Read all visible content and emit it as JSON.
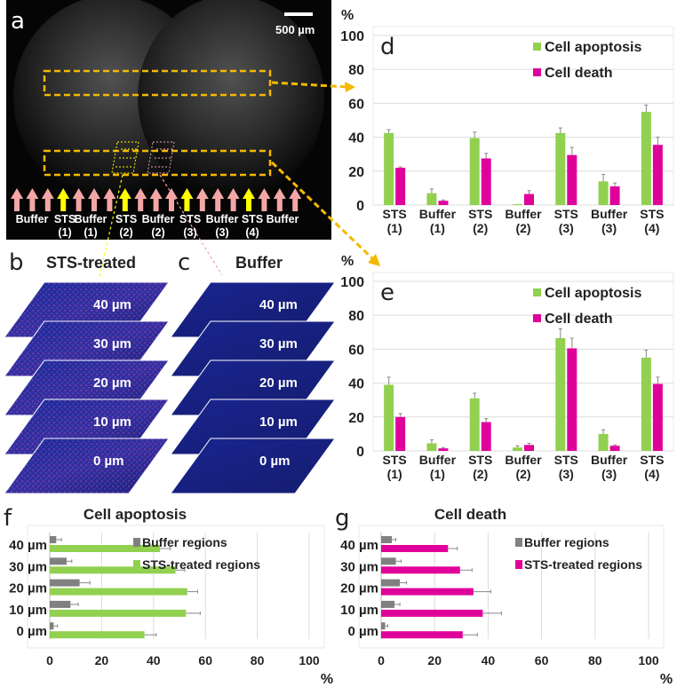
{
  "panels": {
    "a": {
      "letter": "a",
      "scale_bar": "500 µm",
      "arrow_colors": [
        "pink",
        "pink",
        "pink",
        "yellow",
        "pink",
        "pink",
        "pink",
        "yellow",
        "pink",
        "pink",
        "pink",
        "yellow",
        "pink",
        "pink",
        "pink",
        "yellow",
        "pink",
        "pink",
        "pink"
      ],
      "region_labels": [
        {
          "line1": "Buffer",
          "line2": ""
        },
        {
          "line1": "STS",
          "line2": "(1)"
        },
        {
          "line1": "Buffer",
          "line2": "(1)"
        },
        {
          "line1": "STS",
          "line2": "(2)"
        },
        {
          "line1": "Buffer",
          "line2": "(2)"
        },
        {
          "line1": "STS",
          "line2": "(3)"
        },
        {
          "line1": "Buffer",
          "line2": "(3)"
        },
        {
          "line1": "STS",
          "line2": "(4)"
        },
        {
          "line1": "Buffer",
          "line2": ""
        }
      ]
    },
    "b": {
      "letter": "b",
      "title": "STS-treated",
      "layers": [
        "40 µm",
        "30 µm",
        "20 µm",
        "10 µm",
        "0 µm"
      ]
    },
    "c": {
      "letter": "c",
      "title": "Buffer",
      "layers": [
        "40 µm",
        "30 µm",
        "20 µm",
        "10 µm",
        "0 µm"
      ]
    }
  },
  "colors": {
    "apoptosis": "#92d050",
    "death": "#e0009a",
    "buffer": "#808080",
    "pink_arrow": "#f4a6a6",
    "yellow_arrow": "#ffff00",
    "dash": "#f5b800"
  },
  "chart_data": [
    {
      "id": "d",
      "letter": "d",
      "type": "bar",
      "ylabel": "%",
      "ylim": [
        0,
        100
      ],
      "yticks": [
        0,
        20,
        40,
        60,
        80,
        100
      ],
      "grid": true,
      "legend": "top-right",
      "categories": [
        [
          "STS",
          "(1)"
        ],
        [
          "Buffer",
          "(1)"
        ],
        [
          "STS",
          "(2)"
        ],
        [
          "Buffer",
          "(2)"
        ],
        [
          "STS",
          "(3)"
        ],
        [
          "Buffer",
          "(3)"
        ],
        [
          "STS",
          "(4)"
        ]
      ],
      "series": [
        {
          "name": "Cell apoptosis",
          "color": "#92d050",
          "values": [
            42.5,
            7,
            39.5,
            0.5,
            42.5,
            14,
            55
          ],
          "errors": [
            2,
            2.5,
            3.5,
            0,
            3,
            4,
            4
          ]
        },
        {
          "name": "Cell death",
          "color": "#e0009a",
          "values": [
            22,
            2.5,
            27.5,
            6.5,
            29.5,
            11,
            35.5
          ],
          "errors": [
            0.5,
            0.5,
            3,
            2,
            4.5,
            2,
            4.5
          ]
        }
      ]
    },
    {
      "id": "e",
      "letter": "e",
      "type": "bar",
      "ylabel": "%",
      "ylim": [
        0,
        100
      ],
      "yticks": [
        0,
        20,
        40,
        60,
        80,
        100
      ],
      "grid": true,
      "legend": "top-right",
      "categories": [
        [
          "STS",
          "(1)"
        ],
        [
          "Buffer",
          "(1)"
        ],
        [
          "STS",
          "(2)"
        ],
        [
          "Buffer",
          "(2)"
        ],
        [
          "STS",
          "(3)"
        ],
        [
          "Buffer",
          "(3)"
        ],
        [
          "STS",
          "(4)"
        ]
      ],
      "series": [
        {
          "name": "Cell apoptosis",
          "color": "#92d050",
          "values": [
            39,
            4.5,
            31,
            2,
            66.5,
            10,
            55
          ],
          "errors": [
            4.5,
            2,
            3,
            1,
            5.5,
            2.5,
            4.5
          ]
        },
        {
          "name": "Cell death",
          "color": "#e0009a",
          "values": [
            20,
            1.5,
            17,
            3.5,
            60.5,
            3,
            39.5
          ],
          "errors": [
            2,
            0.5,
            2,
            1,
            6,
            0.5,
            4
          ]
        }
      ]
    },
    {
      "id": "f",
      "letter": "f",
      "type": "bar",
      "orientation": "horizontal",
      "title": "Cell apoptosis",
      "xlabel": "%",
      "xlim": [
        0,
        100
      ],
      "xticks": [
        0,
        20,
        40,
        60,
        80,
        100
      ],
      "grid": true,
      "legend": "right",
      "categories": [
        "40 µm",
        "30 µm",
        "20 µm",
        "10 µm",
        "0 µm"
      ],
      "series": [
        {
          "name": "Buffer regions",
          "color": "#808080",
          "values": [
            2.5,
            6.5,
            11.5,
            8,
            1.5
          ],
          "errors": [
            2,
            2,
            4,
            3,
            1.5
          ]
        },
        {
          "name": "STS-treated regions",
          "color": "#92d050",
          "values": [
            42.5,
            48.5,
            53,
            52.5,
            36.5
          ],
          "errors": [
            4,
            3.5,
            4,
            5.5,
            4.5
          ]
        }
      ]
    },
    {
      "id": "g",
      "letter": "g",
      "type": "bar",
      "orientation": "horizontal",
      "title": "Cell death",
      "xlabel": "%",
      "xlim": [
        0,
        100
      ],
      "xticks": [
        0,
        20,
        40,
        60,
        80,
        100
      ],
      "grid": true,
      "legend": "right",
      "categories": [
        "40 µm",
        "30 µm",
        "20 µm",
        "10 µm",
        "0 µm"
      ],
      "series": [
        {
          "name": "Buffer regions",
          "color": "#808080",
          "values": [
            4,
            5.5,
            7,
            5,
            1.5
          ],
          "errors": [
            1.5,
            2,
            2.5,
            2,
            1
          ]
        },
        {
          "name": "STS-treated regions",
          "color": "#e0009a",
          "values": [
            25,
            29.5,
            34.5,
            38,
            30.5
          ],
          "errors": [
            3.5,
            4.5,
            6.5,
            7,
            5.5
          ]
        }
      ]
    }
  ]
}
